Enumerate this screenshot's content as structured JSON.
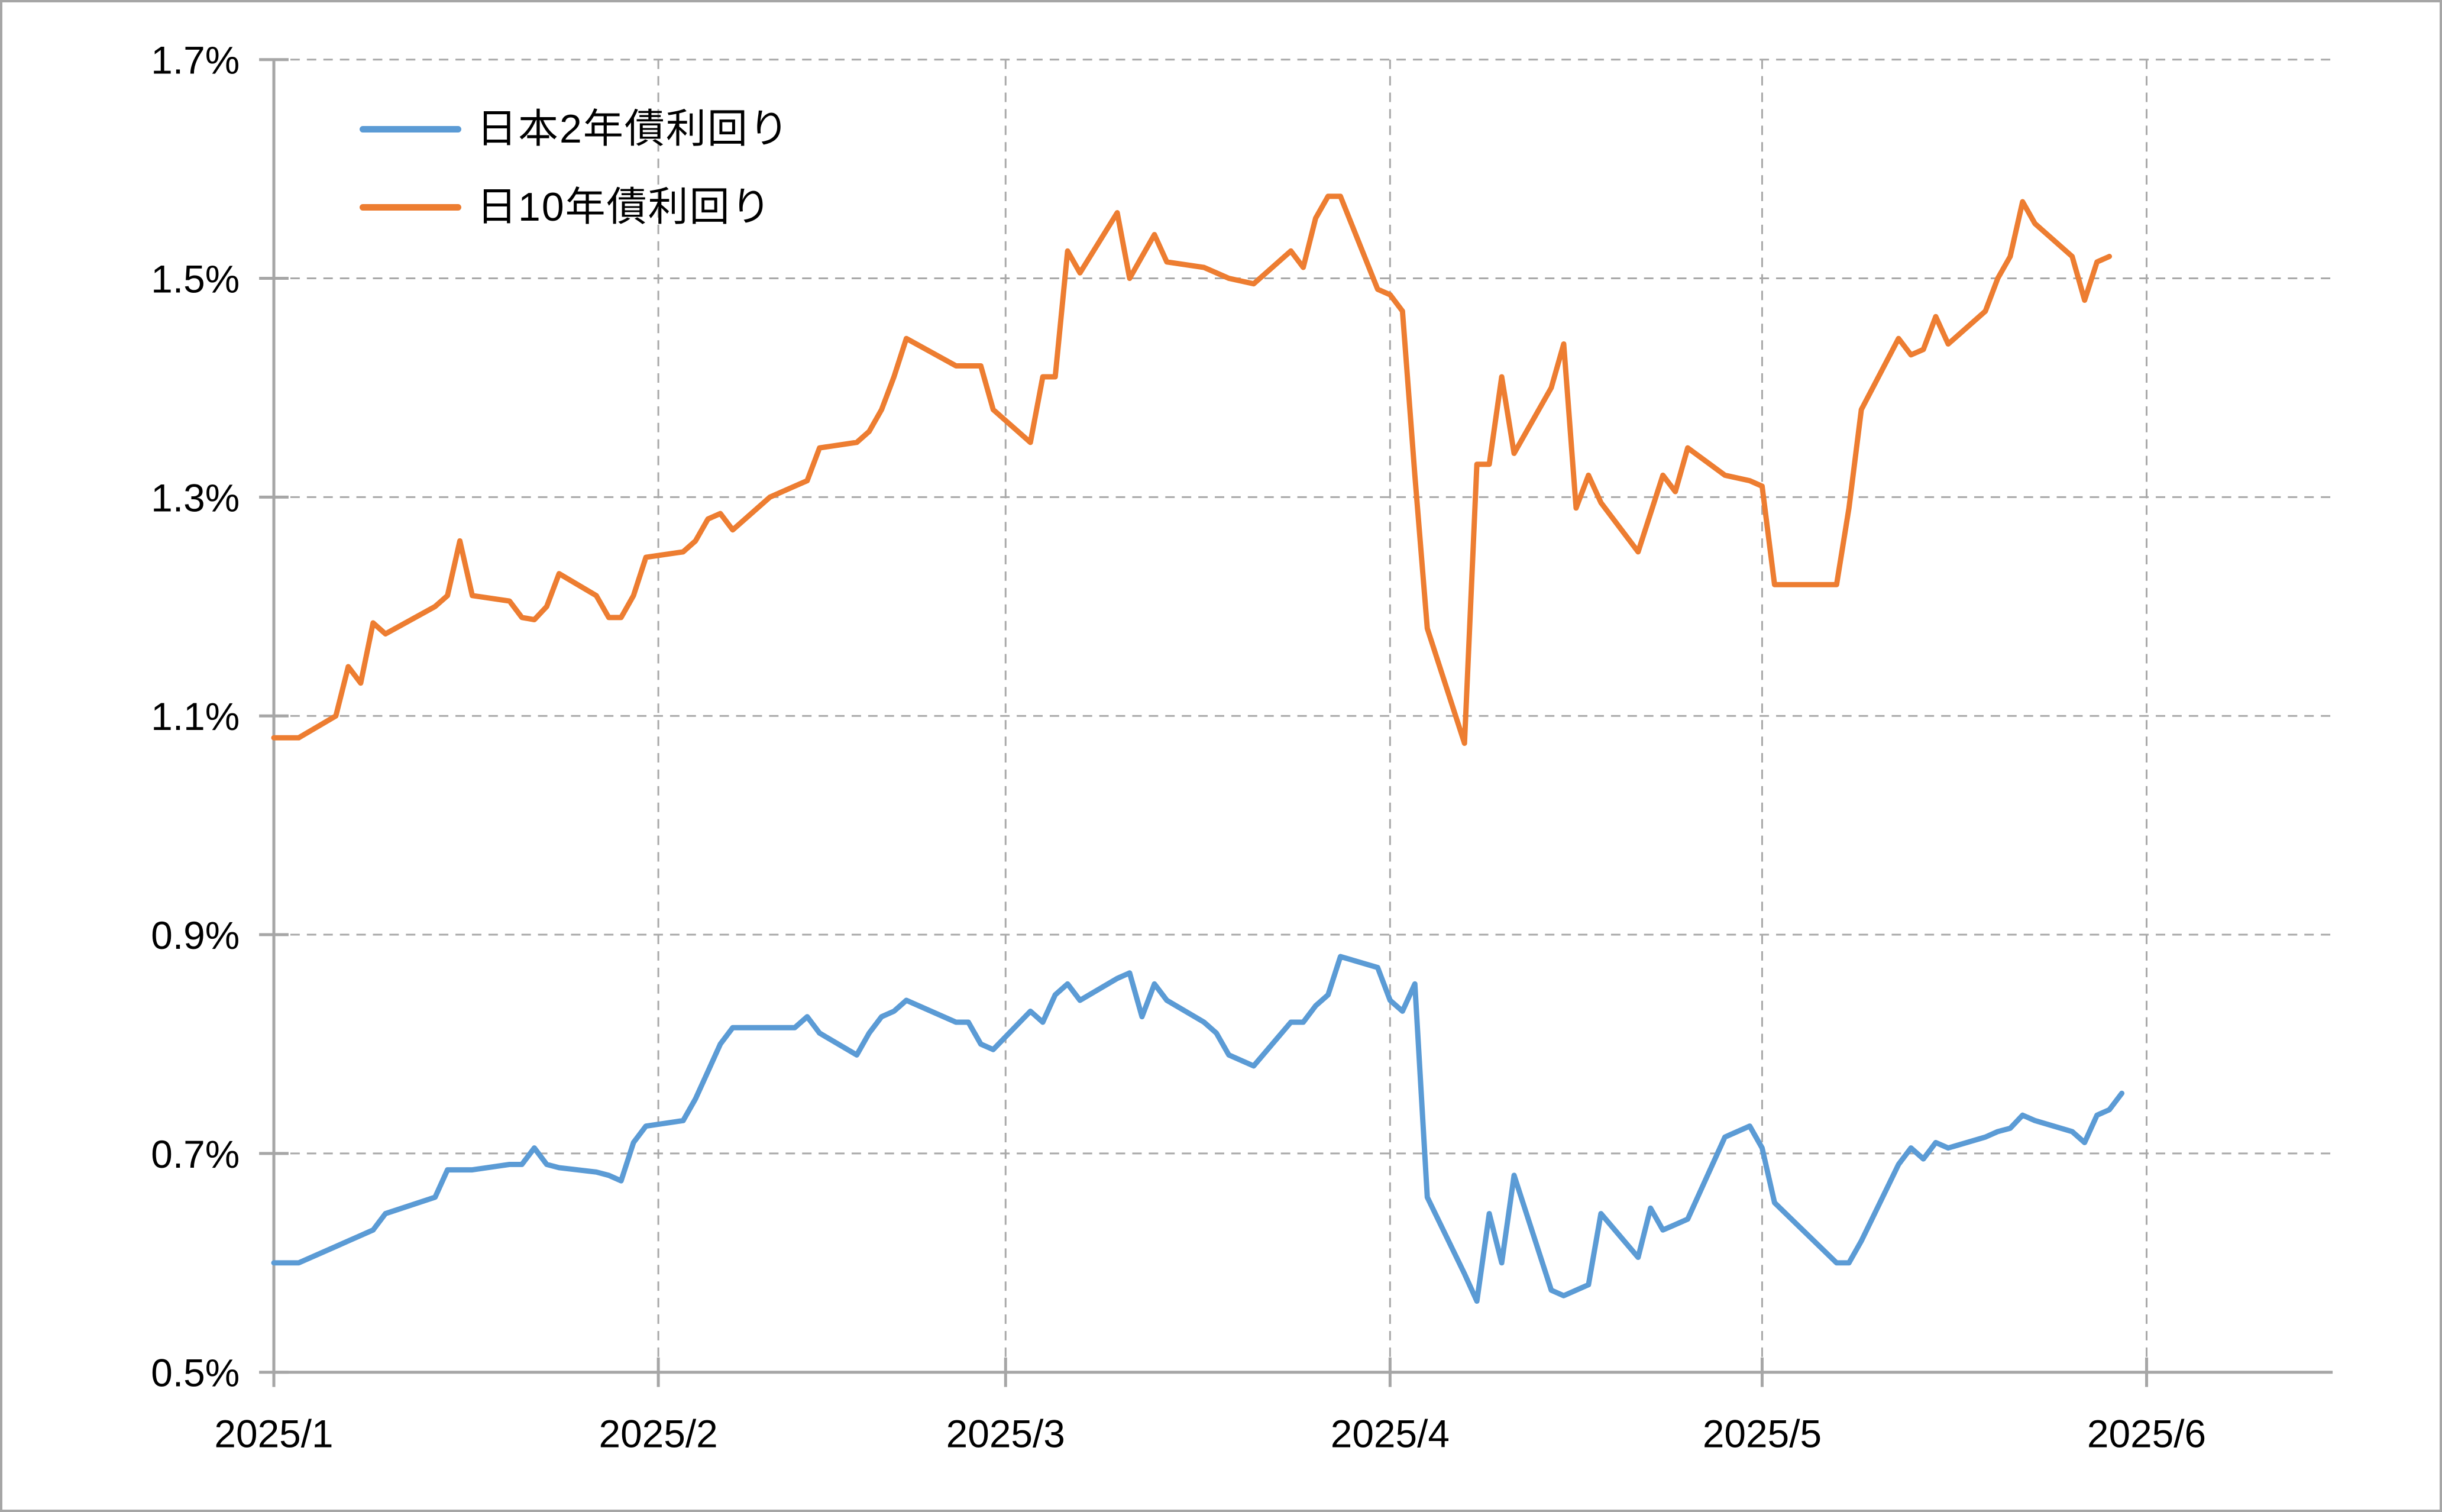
{
  "chart_data": {
    "type": "line",
    "title": "",
    "grid": true,
    "legend_position": "top-left-inside",
    "background": "#ffffff",
    "axis_color": "#A6A6A6",
    "gridline_color": "#A9A9A9",
    "text_color": "#000000",
    "yaxis": {
      "ylim": [
        0.5,
        1.7
      ],
      "ticks": [
        0.5,
        0.7,
        0.9,
        1.1,
        1.3,
        1.5,
        1.7
      ],
      "tick_labels": [
        "0.5%",
        "0.7%",
        "0.9%",
        "1.1%",
        "1.3%",
        "1.5%",
        "1.7%"
      ]
    },
    "xaxis": {
      "xlim": [
        "2025-01-01",
        "2025-06-16"
      ],
      "ticks": [
        "2025-01-01",
        "2025-02-01",
        "2025-03-01",
        "2025-04-01",
        "2025-05-01",
        "2025-06-01"
      ],
      "tick_labels": [
        "2025/1",
        "2025/2",
        "2025/3",
        "2025/4",
        "2025/5",
        "2025/6"
      ]
    },
    "x_dates": [
      "2025-01-01",
      "2025-01-02",
      "2025-01-03",
      "2025-01-06",
      "2025-01-07",
      "2025-01-08",
      "2025-01-09",
      "2025-01-10",
      "2025-01-14",
      "2025-01-15",
      "2025-01-16",
      "2025-01-17",
      "2025-01-20",
      "2025-01-21",
      "2025-01-22",
      "2025-01-23",
      "2025-01-24",
      "2025-01-27",
      "2025-01-28",
      "2025-01-29",
      "2025-01-30",
      "2025-01-31",
      "2025-02-03",
      "2025-02-04",
      "2025-02-05",
      "2025-02-06",
      "2025-02-07",
      "2025-02-10",
      "2025-02-12",
      "2025-02-13",
      "2025-02-14",
      "2025-02-17",
      "2025-02-18",
      "2025-02-19",
      "2025-02-20",
      "2025-02-21",
      "2025-02-25",
      "2025-02-26",
      "2025-02-27",
      "2025-02-28",
      "2025-03-03",
      "2025-03-04",
      "2025-03-05",
      "2025-03-06",
      "2025-03-07",
      "2025-03-10",
      "2025-03-11",
      "2025-03-12",
      "2025-03-13",
      "2025-03-14",
      "2025-03-17",
      "2025-03-18",
      "2025-03-19",
      "2025-03-21",
      "2025-03-24",
      "2025-03-25",
      "2025-03-26",
      "2025-03-27",
      "2025-03-28",
      "2025-03-31",
      "2025-04-01",
      "2025-04-02",
      "2025-04-03",
      "2025-04-04",
      "2025-04-07",
      "2025-04-08",
      "2025-04-09",
      "2025-04-10",
      "2025-04-11",
      "2025-04-14",
      "2025-04-15",
      "2025-04-16",
      "2025-04-17",
      "2025-04-18",
      "2025-04-21",
      "2025-04-22",
      "2025-04-23",
      "2025-04-24",
      "2025-04-25",
      "2025-04-28",
      "2025-04-30",
      "2025-05-01",
      "2025-05-02",
      "2025-05-07",
      "2025-05-08",
      "2025-05-09",
      "2025-05-12",
      "2025-05-13",
      "2025-05-14",
      "2025-05-15",
      "2025-05-16",
      "2025-05-19",
      "2025-05-20",
      "2025-05-21",
      "2025-05-22",
      "2025-05-23",
      "2025-05-26",
      "2025-05-27",
      "2025-05-28",
      "2025-05-29",
      "2025-05-30"
    ],
    "series": [
      {
        "name": "日本2年債利回り",
        "color": "#5B9BD5",
        "line_width": 9,
        "values": [
          0.6,
          0.6,
          0.6,
          0.615,
          0.62,
          0.625,
          0.63,
          0.645,
          0.66,
          0.685,
          0.685,
          0.685,
          0.69,
          0.69,
          0.705,
          0.69,
          0.687,
          0.683,
          0.68,
          0.675,
          0.71,
          0.725,
          0.73,
          0.75,
          0.775,
          0.8,
          0.815,
          0.815,
          0.815,
          0.825,
          0.81,
          0.79,
          0.81,
          0.825,
          0.83,
          0.84,
          0.82,
          0.82,
          0.8,
          0.795,
          0.83,
          0.82,
          0.845,
          0.855,
          0.84,
          0.86,
          0.865,
          0.825,
          0.855,
          0.84,
          0.82,
          0.81,
          0.79,
          0.78,
          0.82,
          0.82,
          0.835,
          0.845,
          0.88,
          0.87,
          0.84,
          0.83,
          0.855,
          0.66,
          0.59,
          0.565,
          0.645,
          0.6,
          0.68,
          0.575,
          0.57,
          0.575,
          0.58,
          0.645,
          0.605,
          0.65,
          0.63,
          0.635,
          0.64,
          0.715,
          0.725,
          0.705,
          0.655,
          0.6,
          0.6,
          0.62,
          0.69,
          0.705,
          0.695,
          0.71,
          0.705,
          0.715,
          0.72,
          0.723,
          0.735,
          0.73,
          0.72,
          0.71,
          0.735,
          0.74,
          0.755
        ]
      },
      {
        "name": "日10年債利回り",
        "color": "#ED7D31",
        "line_width": 9,
        "values": [
          1.08,
          1.08,
          1.08,
          1.1,
          1.145,
          1.13,
          1.185,
          1.175,
          1.2,
          1.21,
          1.26,
          1.21,
          1.205,
          1.19,
          1.188,
          1.2,
          1.23,
          1.21,
          1.19,
          1.19,
          1.21,
          1.245,
          1.25,
          1.26,
          1.28,
          1.285,
          1.27,
          1.3,
          1.31,
          1.315,
          1.345,
          1.35,
          1.36,
          1.38,
          1.41,
          1.445,
          1.42,
          1.42,
          1.42,
          1.38,
          1.35,
          1.41,
          1.41,
          1.525,
          1.505,
          1.56,
          1.5,
          1.52,
          1.54,
          1.515,
          1.51,
          1.505,
          1.5,
          1.495,
          1.525,
          1.51,
          1.555,
          1.575,
          1.575,
          1.49,
          1.485,
          1.47,
          1.32,
          1.18,
          1.075,
          1.33,
          1.33,
          1.41,
          1.34,
          1.4,
          1.44,
          1.29,
          1.32,
          1.295,
          1.25,
          1.285,
          1.32,
          1.305,
          1.345,
          1.32,
          1.315,
          1.31,
          1.22,
          1.22,
          1.29,
          1.38,
          1.445,
          1.43,
          1.435,
          1.465,
          1.44,
          1.47,
          1.5,
          1.52,
          1.57,
          1.55,
          1.52,
          1.48,
          1.515,
          1.52,
          null
        ]
      }
    ]
  }
}
